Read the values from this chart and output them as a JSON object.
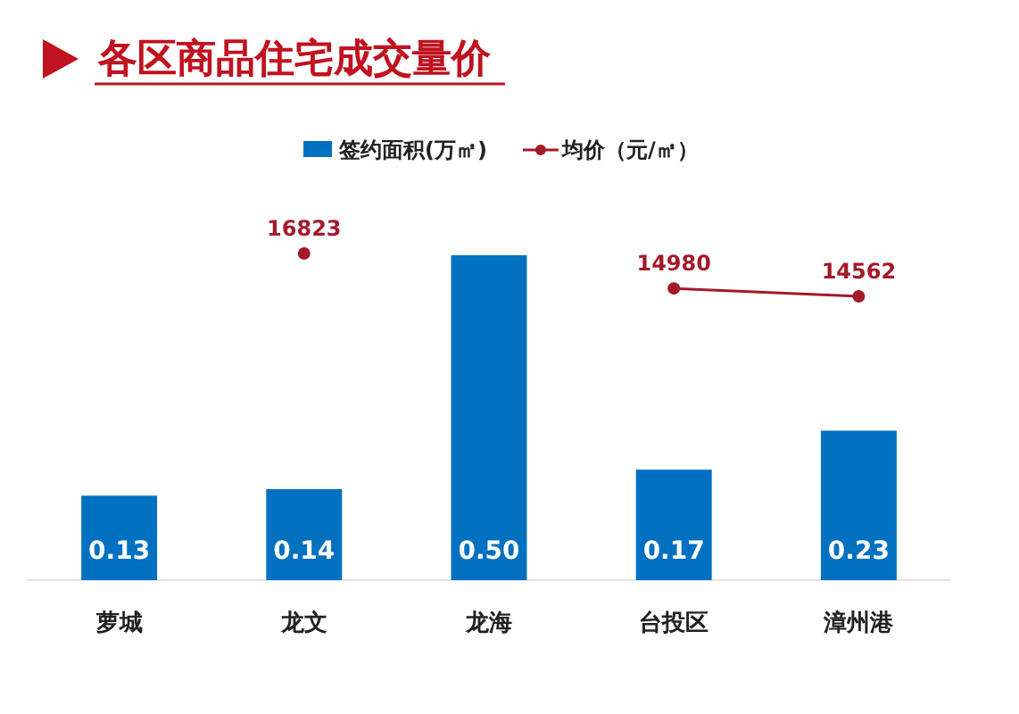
{
  "chart_data": {
    "type": "bar",
    "title": "各区商品住宅成交量价",
    "categories": [
      "萝城",
      "龙文",
      "龙海",
      "台投区",
      "漳州港"
    ],
    "series": [
      {
        "name": "签约面积(万㎡)",
        "color": "#0070c0",
        "values": [
          0.13,
          0.14,
          0.5,
          0.17,
          0.23
        ],
        "value_labels": [
          "0.13",
          "0.14",
          "0.50",
          "0.17",
          "0.23"
        ]
      },
      {
        "name": "均价（元/㎡）",
        "type": "line",
        "axis": "y2",
        "color": "#a31a2a",
        "marker": "circle",
        "values": [
          null,
          16823,
          null,
          14980,
          14562
        ],
        "value_labels": [
          null,
          "16823",
          null,
          "14980",
          "14562"
        ]
      }
    ],
    "legend": "top"
  }
}
